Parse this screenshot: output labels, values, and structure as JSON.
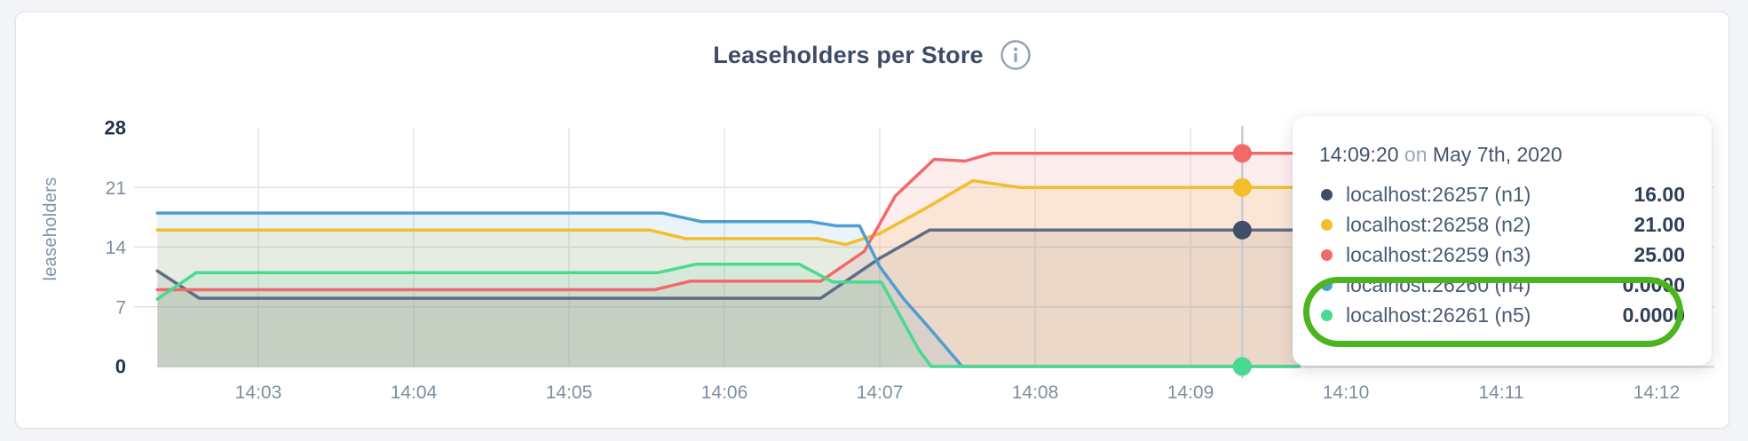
{
  "chart_data": {
    "type": "area",
    "title": "Leaseholders per Store",
    "ylabel": "leaseholders",
    "xlabel": "",
    "ylim": [
      0,
      28
    ],
    "y_ticks": [
      0,
      7,
      14,
      21,
      28
    ],
    "grid_lines_y": [
      7,
      14,
      21
    ],
    "x_ticks": [
      "14:03",
      "14:04",
      "14:05",
      "14:06",
      "14:07",
      "14:08",
      "14:09",
      "14:10",
      "14:11",
      "14:12"
    ],
    "x_tick_minutes": [
      3,
      4,
      5,
      6,
      7,
      8,
      9,
      10,
      11,
      12
    ],
    "x_range_minutes": [
      2.35,
      12.37
    ],
    "grid": true,
    "legend_position": "hover-tooltip",
    "hover": {
      "x_minutes": 9.3333,
      "time_label": "14:09:20",
      "connector": "on",
      "date_label": "May 7th, 2020"
    },
    "series": [
      {
        "name": "localhost:26257 (n1)",
        "color": "#5F6C87",
        "dot_color": "#414E68",
        "hover_value": 16,
        "hover_value_label": "16.00",
        "points": [
          [
            2.35,
            11.2
          ],
          [
            2.62,
            8
          ],
          [
            6.62,
            8
          ],
          [
            7.0,
            12.7
          ],
          [
            7.32,
            16
          ],
          [
            9.7,
            16
          ]
        ]
      },
      {
        "name": "localhost:26258 (n2)",
        "color": "#F2BE2C",
        "dot_color": "#F2BE2C",
        "hover_value": 21,
        "hover_value_label": "21.00",
        "points": [
          [
            2.35,
            16
          ],
          [
            5.52,
            16
          ],
          [
            5.75,
            15
          ],
          [
            6.6,
            15
          ],
          [
            6.78,
            14.3
          ],
          [
            7.0,
            15.6
          ],
          [
            7.3,
            18.6
          ],
          [
            7.6,
            21.8
          ],
          [
            7.9,
            21
          ],
          [
            9.7,
            21
          ]
        ]
      },
      {
        "name": "localhost:26259 (n3)",
        "color": "#F16969",
        "dot_color": "#F16969",
        "hover_value": 25,
        "hover_value_label": "25.00",
        "points": [
          [
            2.35,
            9
          ],
          [
            5.55,
            9
          ],
          [
            5.78,
            10
          ],
          [
            6.62,
            10
          ],
          [
            6.9,
            13.5
          ],
          [
            7.1,
            20
          ],
          [
            7.35,
            24.3
          ],
          [
            7.55,
            24.1
          ],
          [
            7.72,
            25
          ],
          [
            9.7,
            25
          ]
        ]
      },
      {
        "name": "localhost:26260 (n4)",
        "color": "#4E9FD1",
        "dot_color": "#4E9FD1",
        "hover_value": 0,
        "hover_value_label": "0.0000",
        "points": [
          [
            2.35,
            18
          ],
          [
            5.6,
            18
          ],
          [
            5.85,
            17
          ],
          [
            6.55,
            17
          ],
          [
            6.72,
            16.5
          ],
          [
            6.87,
            16.5
          ],
          [
            7.0,
            11.7
          ],
          [
            7.15,
            8
          ],
          [
            7.32,
            4.5
          ],
          [
            7.53,
            0
          ],
          [
            9.7,
            0
          ]
        ]
      },
      {
        "name": "localhost:26261 (n5)",
        "color": "#49D990",
        "dot_color": "#49D990",
        "hover_value": 0,
        "hover_value_label": "0.0000",
        "points": [
          [
            2.35,
            7.9
          ],
          [
            2.6,
            11
          ],
          [
            5.57,
            11
          ],
          [
            5.82,
            12
          ],
          [
            6.48,
            12
          ],
          [
            6.7,
            9.9
          ],
          [
            7.01,
            9.9
          ],
          [
            7.25,
            2
          ],
          [
            7.33,
            0
          ],
          [
            9.7,
            0
          ]
        ]
      }
    ]
  },
  "annotation": {
    "color": "#4cb41e",
    "purpose": "circles the two series rows with value 0.0000"
  }
}
